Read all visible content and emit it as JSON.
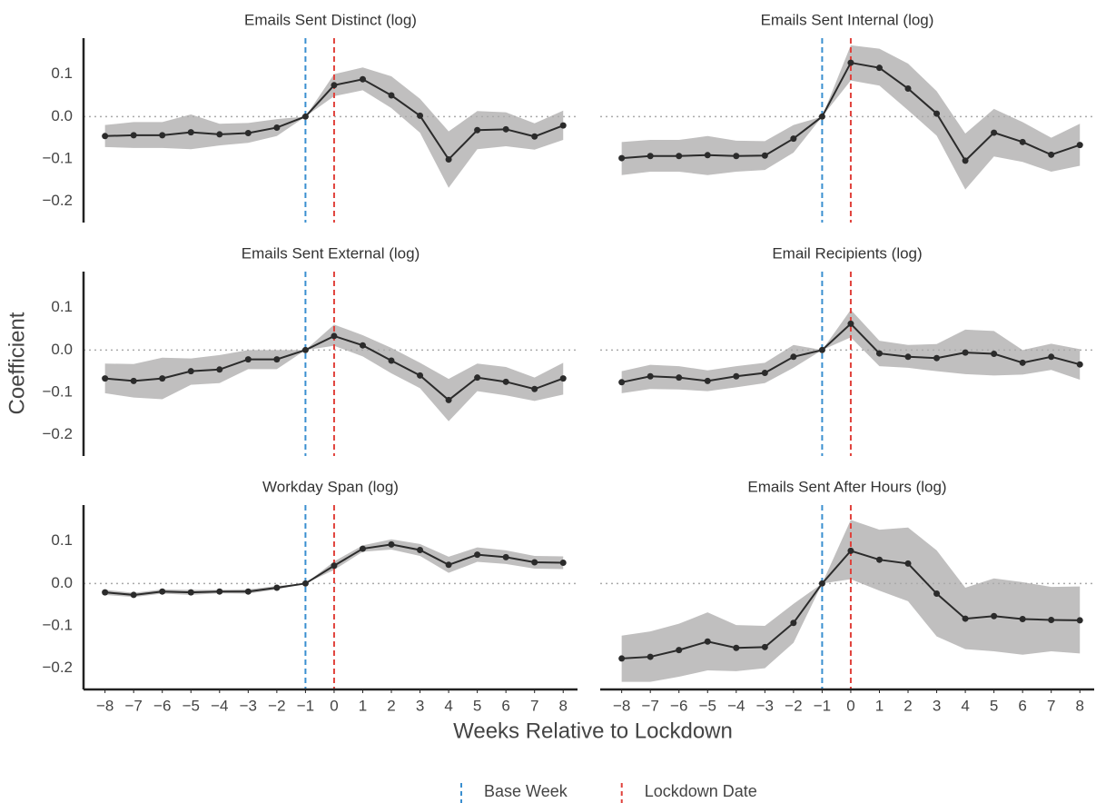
{
  "x_label": "Weeks Relative to Lockdown",
  "y_label": "Coefficient",
  "reference_lines": [
    {
      "name": "Base Week",
      "x": -1,
      "color": "#3a8fd0"
    },
    {
      "name": "Lockdown Date",
      "x": 0,
      "color": "#e0413b"
    }
  ],
  "chart_data": [
    {
      "type": "line",
      "title": "Emails Sent Distinct (log)",
      "x": [
        -8,
        -7,
        -6,
        -5,
        -4,
        -3,
        -2,
        -1,
        0,
        1,
        2,
        3,
        4,
        5,
        6,
        7,
        8
      ],
      "series": [
        {
          "color": "#2b2b2b",
          "band_color": "#c0bfbf",
          "values": [
            -0.046,
            -0.044,
            -0.044,
            -0.037,
            -0.042,
            -0.039,
            -0.026,
            0,
            0.074,
            0.088,
            0.05,
            0.002,
            -0.101,
            -0.032,
            -0.03,
            -0.047,
            -0.021
          ],
          "lower": [
            -0.072,
            -0.074,
            -0.074,
            -0.077,
            -0.068,
            -0.062,
            -0.046,
            0,
            0.048,
            0.062,
            0.02,
            -0.038,
            -0.168,
            -0.077,
            -0.07,
            -0.078,
            -0.055
          ],
          "upper": [
            -0.02,
            -0.013,
            -0.013,
            0.005,
            -0.017,
            -0.015,
            -0.006,
            0,
            0.1,
            0.116,
            0.095,
            0.042,
            -0.035,
            0.013,
            0.01,
            -0.016,
            0.014
          ]
        }
      ],
      "xlim": [
        -8.75,
        8.5
      ],
      "ylim": [
        -0.25,
        0.185
      ],
      "hline": 0,
      "yticks": [
        {
          "value": -0.2,
          "label": "−0.2"
        },
        {
          "value": -0.1,
          "label": "−0.1"
        },
        {
          "value": 0,
          "label": "0.0"
        },
        0.1
      ]
    },
    {
      "type": "line",
      "title": "Emails Sent Internal (log)",
      "x": [
        -8,
        -7,
        -6,
        -5,
        -4,
        -3,
        -2,
        -1,
        0,
        1,
        2,
        3,
        4,
        5,
        6,
        7,
        8
      ],
      "series": [
        {
          "color": "#2b2b2b",
          "band_color": "#c0bfbf",
          "values": [
            -0.098,
            -0.093,
            -0.093,
            -0.091,
            -0.093,
            -0.092,
            -0.052,
            0,
            0.127,
            0.115,
            0.066,
            0.007,
            -0.104,
            -0.038,
            -0.06,
            -0.09,
            -0.067
          ],
          "lower": [
            -0.138,
            -0.13,
            -0.13,
            -0.138,
            -0.13,
            -0.126,
            -0.085,
            0,
            0.085,
            0.073,
            0.015,
            -0.045,
            -0.172,
            -0.094,
            -0.107,
            -0.13,
            -0.116
          ],
          "upper": [
            -0.06,
            -0.055,
            -0.055,
            -0.046,
            -0.057,
            -0.058,
            -0.02,
            0,
            0.168,
            0.16,
            0.125,
            0.06,
            -0.04,
            0.018,
            -0.013,
            -0.05,
            -0.017
          ]
        }
      ],
      "xlim": [
        -8.75,
        8.5
      ],
      "ylim": [
        -0.25,
        0.185
      ],
      "hline": 0
    },
    {
      "type": "line",
      "title": "Emails Sent External (log)",
      "x": [
        -8,
        -7,
        -6,
        -5,
        -4,
        -3,
        -2,
        -1,
        0,
        1,
        2,
        3,
        4,
        5,
        6,
        7,
        8
      ],
      "series": [
        {
          "color": "#2b2b2b",
          "band_color": "#c0bfbf",
          "values": [
            -0.067,
            -0.073,
            -0.067,
            -0.05,
            -0.046,
            -0.022,
            -0.022,
            0,
            0.033,
            0.011,
            -0.025,
            -0.06,
            -0.118,
            -0.065,
            -0.075,
            -0.092,
            -0.067
          ],
          "lower": [
            -0.102,
            -0.112,
            -0.116,
            -0.082,
            -0.078,
            -0.045,
            -0.045,
            0,
            0.01,
            -0.015,
            -0.055,
            -0.09,
            -0.168,
            -0.097,
            -0.107,
            -0.12,
            -0.105
          ],
          "upper": [
            -0.032,
            -0.033,
            -0.018,
            -0.02,
            -0.012,
            0.0,
            0.0,
            0,
            0.06,
            0.035,
            0.005,
            -0.03,
            -0.068,
            -0.032,
            -0.04,
            -0.065,
            -0.03
          ]
        }
      ],
      "xlim": [
        -8.75,
        8.5
      ],
      "ylim": [
        -0.25,
        0.185
      ],
      "hline": 0,
      "yticks": [
        {
          "value": -0.2,
          "label": "−0.2"
        },
        {
          "value": -0.1,
          "label": "−0.1"
        },
        {
          "value": 0,
          "label": "0.0"
        },
        0.1
      ]
    },
    {
      "type": "line",
      "title": "Email Recipients (log)",
      "x": [
        -8,
        -7,
        -6,
        -5,
        -4,
        -3,
        -2,
        -1,
        0,
        1,
        2,
        3,
        4,
        5,
        6,
        7,
        8
      ],
      "series": [
        {
          "color": "#2b2b2b",
          "band_color": "#c0bfbf",
          "values": [
            -0.076,
            -0.062,
            -0.065,
            -0.073,
            -0.062,
            -0.054,
            -0.016,
            0,
            0.062,
            -0.008,
            -0.016,
            -0.019,
            -0.006,
            -0.009,
            -0.03,
            -0.016,
            -0.034
          ],
          "lower": [
            -0.102,
            -0.092,
            -0.093,
            -0.097,
            -0.088,
            -0.078,
            -0.042,
            0,
            0.03,
            -0.038,
            -0.042,
            -0.05,
            -0.057,
            -0.06,
            -0.058,
            -0.047,
            -0.07
          ],
          "upper": [
            -0.05,
            -0.035,
            -0.038,
            -0.048,
            -0.038,
            -0.03,
            0.012,
            0,
            0.095,
            0.022,
            0.012,
            0.014,
            0.048,
            0.045,
            0.0,
            0.015,
            0.002
          ]
        }
      ],
      "xlim": [
        -8.75,
        8.5
      ],
      "ylim": [
        -0.25,
        0.185
      ],
      "hline": 0
    },
    {
      "type": "line",
      "title": "Workday Span (log)",
      "x": [
        -8,
        -7,
        -6,
        -5,
        -4,
        -3,
        -2,
        -1,
        0,
        1,
        2,
        3,
        4,
        5,
        6,
        7,
        8
      ],
      "series": [
        {
          "color": "#2b2b2b",
          "band_color": "#c0bfbf",
          "values": [
            -0.021,
            -0.027,
            -0.019,
            -0.021,
            -0.019,
            -0.019,
            -0.01,
            0,
            0.042,
            0.082,
            0.092,
            0.079,
            0.044,
            0.068,
            0.062,
            0.05,
            0.049
          ],
          "lower": [
            -0.027,
            -0.032,
            -0.024,
            -0.027,
            -0.023,
            -0.024,
            -0.014,
            0,
            0.032,
            0.075,
            0.08,
            0.065,
            0.025,
            0.051,
            0.046,
            0.035,
            0.034
          ],
          "upper": [
            -0.015,
            -0.022,
            -0.014,
            -0.015,
            -0.015,
            -0.014,
            -0.006,
            0,
            0.052,
            0.09,
            0.104,
            0.093,
            0.063,
            0.085,
            0.078,
            0.065,
            0.064
          ]
        }
      ],
      "xlim": [
        -8.75,
        8.5
      ],
      "ylim": [
        -0.25,
        0.185
      ],
      "hline": 0,
      "yticks": [
        {
          "value": -0.2,
          "label": "−0.2"
        },
        {
          "value": -0.1,
          "label": "−0.1"
        },
        {
          "value": 0,
          "label": "0.0"
        },
        0.1
      ],
      "xticks": [
        {
          "value": -8,
          "label": "−8"
        },
        {
          "value": -7,
          "label": "−7"
        },
        {
          "value": -6,
          "label": "−6"
        },
        {
          "value": -5,
          "label": "−5"
        },
        {
          "value": -4,
          "label": "−4"
        },
        {
          "value": -3,
          "label": "−3"
        },
        {
          "value": -2,
          "label": "−2"
        },
        {
          "value": -1,
          "label": "−1"
        },
        0,
        1,
        2,
        3,
        4,
        5,
        6,
        7,
        8
      ]
    },
    {
      "type": "line",
      "title": "Emails Sent After Hours (log)",
      "x": [
        -8,
        -7,
        -6,
        -5,
        -4,
        -3,
        -2,
        -1,
        0,
        1,
        2,
        3,
        4,
        5,
        6,
        7,
        8
      ],
      "series": [
        {
          "color": "#2b2b2b",
          "band_color": "#c0bfbf",
          "values": [
            -0.177,
            -0.173,
            -0.157,
            -0.137,
            -0.152,
            -0.15,
            -0.093,
            0,
            0.077,
            0.056,
            0.047,
            -0.024,
            -0.083,
            -0.077,
            -0.084,
            -0.086,
            -0.087
          ],
          "lower": [
            -0.232,
            -0.232,
            -0.22,
            -0.205,
            -0.207,
            -0.2,
            -0.14,
            0,
            0.01,
            -0.017,
            -0.042,
            -0.125,
            -0.155,
            -0.16,
            -0.168,
            -0.16,
            -0.165
          ],
          "upper": [
            -0.123,
            -0.113,
            -0.095,
            -0.068,
            -0.098,
            -0.1,
            -0.048,
            0,
            0.15,
            0.127,
            0.132,
            0.078,
            -0.01,
            0.012,
            0.003,
            -0.008,
            -0.007
          ]
        }
      ],
      "xlim": [
        -8.75,
        8.5
      ],
      "ylim": [
        -0.25,
        0.185
      ],
      "hline": 0,
      "xticks": [
        {
          "value": -8,
          "label": "−8"
        },
        {
          "value": -7,
          "label": "−7"
        },
        {
          "value": -6,
          "label": "−6"
        },
        {
          "value": -5,
          "label": "−5"
        },
        {
          "value": -4,
          "label": "−4"
        },
        {
          "value": -3,
          "label": "−3"
        },
        {
          "value": -2,
          "label": "−2"
        },
        {
          "value": -1,
          "label": "−1"
        },
        0,
        1,
        2,
        3,
        4,
        5,
        6,
        7,
        8
      ]
    }
  ]
}
